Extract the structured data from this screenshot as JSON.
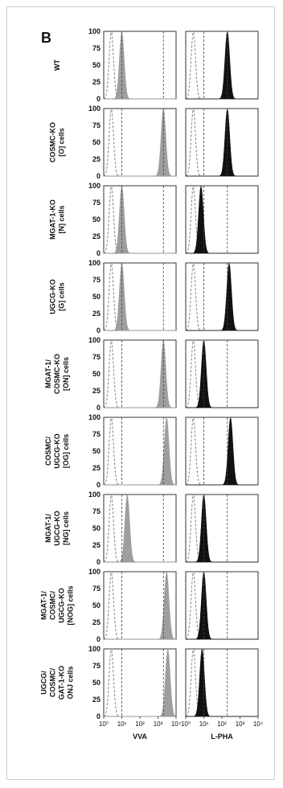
{
  "panel_label": "B",
  "chart_data": {
    "type": "histogram-grid",
    "y_ticks": [
      0,
      25,
      50,
      75,
      100
    ],
    "ylim": [
      0,
      100
    ],
    "x_scale": "log",
    "xlim": [
      1,
      10000
    ],
    "x_tick_labels": [
      "10⁰",
      "10¹",
      "10²",
      "10³",
      "10⁴"
    ],
    "columns": [
      {
        "label": "VVA",
        "fill": "#9e9e9e"
      },
      {
        "label": "L-PHA",
        "fill": "#111111"
      }
    ],
    "reference_lines": [
      {
        "column": 0,
        "x": [
          10,
          2000
        ]
      },
      {
        "column": 1,
        "x": [
          10,
          200
        ]
      }
    ],
    "rows": [
      {
        "label_lines": [
          "WT"
        ],
        "vva_peak": 10,
        "lpha_peak": 200
      },
      {
        "label_lines": [
          "COSMC-KO",
          "[O] cells"
        ],
        "vva_peak": 2000,
        "lpha_peak": 200
      },
      {
        "label_lines": [
          "MGAT-1-KO",
          "[N] cells"
        ],
        "vva_peak": 10,
        "lpha_peak": 7
      },
      {
        "label_lines": [
          "UGCG-KO",
          "[G] cells"
        ],
        "vva_peak": 10,
        "lpha_peak": 250
      },
      {
        "label_lines": [
          "MGAT-1/",
          "COSMC-KO",
          "[ON] cells"
        ],
        "vva_peak": 2000,
        "lpha_peak": 10
      },
      {
        "label_lines": [
          "COSMC/",
          "UGCG-KO",
          "[OG] cells"
        ],
        "vva_peak": 3000,
        "lpha_peak": 300
      },
      {
        "label_lines": [
          "MGAT-1/",
          "UGCG-KO",
          "[NG] cells"
        ],
        "vva_peak": 20,
        "lpha_peak": 10
      },
      {
        "label_lines": [
          "MGAT-1/",
          "COSMC/",
          "UGCG-KO",
          "[NOG] cells"
        ],
        "vva_peak": 3000,
        "lpha_peak": 10
      },
      {
        "label_lines": [
          "UGCG/",
          "COSMC/",
          "GAT-1-KO",
          "ONJ cells"
        ],
        "vva_peak": 3500,
        "lpha_peak": 8
      }
    ]
  }
}
